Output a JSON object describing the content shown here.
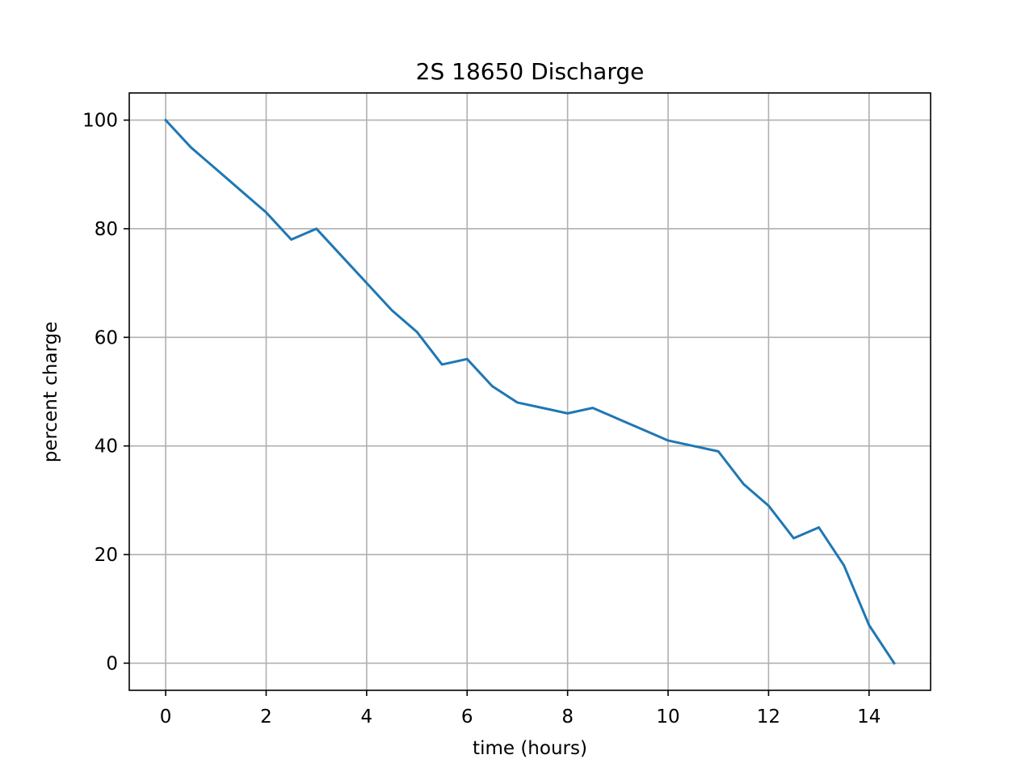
{
  "chart_data": {
    "type": "line",
    "title": "2S 18650 Discharge",
    "xlabel": "time (hours)",
    "ylabel": "percent charge",
    "xlim": [
      -0.725,
      15.225
    ],
    "ylim": [
      -5,
      105
    ],
    "xticks": [
      0,
      2,
      4,
      6,
      8,
      10,
      12,
      14
    ],
    "yticks": [
      0,
      20,
      40,
      60,
      80,
      100
    ],
    "xtick_labels": [
      "0",
      "2",
      "4",
      "6",
      "8",
      "10",
      "12",
      "14"
    ],
    "ytick_labels": [
      "0",
      "20",
      "40",
      "60",
      "80",
      "100"
    ],
    "grid": true,
    "series": [
      {
        "color": "#1f77b4",
        "x": [
          0,
          0.5,
          1,
          1.5,
          2,
          2.5,
          3,
          3.5,
          4,
          4.5,
          5,
          5.5,
          6,
          6.5,
          7,
          7.5,
          8,
          8.5,
          9,
          9.5,
          10,
          10.5,
          11,
          11.5,
          12,
          12.5,
          13,
          13.5,
          14,
          14.5
        ],
        "y": [
          100,
          95,
          91,
          87,
          83,
          78,
          80,
          75,
          70,
          65,
          61,
          55,
          56,
          51,
          48,
          47,
          46,
          47,
          45,
          43,
          41,
          40,
          39,
          33,
          29,
          23,
          25,
          18,
          7,
          0
        ]
      }
    ]
  }
}
